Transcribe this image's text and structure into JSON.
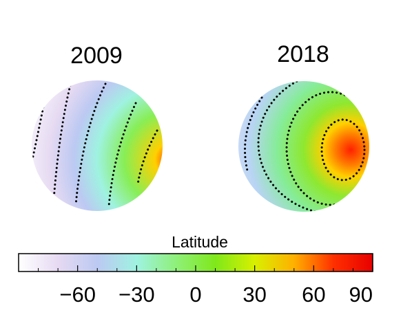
{
  "chart_data": {
    "type": "heatmap",
    "panels": [
      {
        "title": "2009",
        "contour_levels": [
          -60,
          -30,
          0,
          30,
          60
        ]
      },
      {
        "title": "2018",
        "contour_levels": [
          -30,
          0,
          30,
          60
        ]
      }
    ],
    "colorbar": {
      "label": "Latitude",
      "range": [
        -90,
        90
      ],
      "ticks": [
        -60,
        -30,
        0,
        30,
        60,
        90
      ],
      "tick_labels": [
        "−60",
        "−30",
        "0",
        "30",
        "60",
        "90"
      ],
      "colormap": [
        "#ffffff",
        "#e6daf2",
        "#bcc9f2",
        "#9ff2e1",
        "#8ff07a",
        "#7fe81a",
        "#d8f000",
        "#ffb000",
        "#ff3000",
        "#e80000"
      ],
      "orientation": "horizontal",
      "position": "bottom"
    }
  }
}
